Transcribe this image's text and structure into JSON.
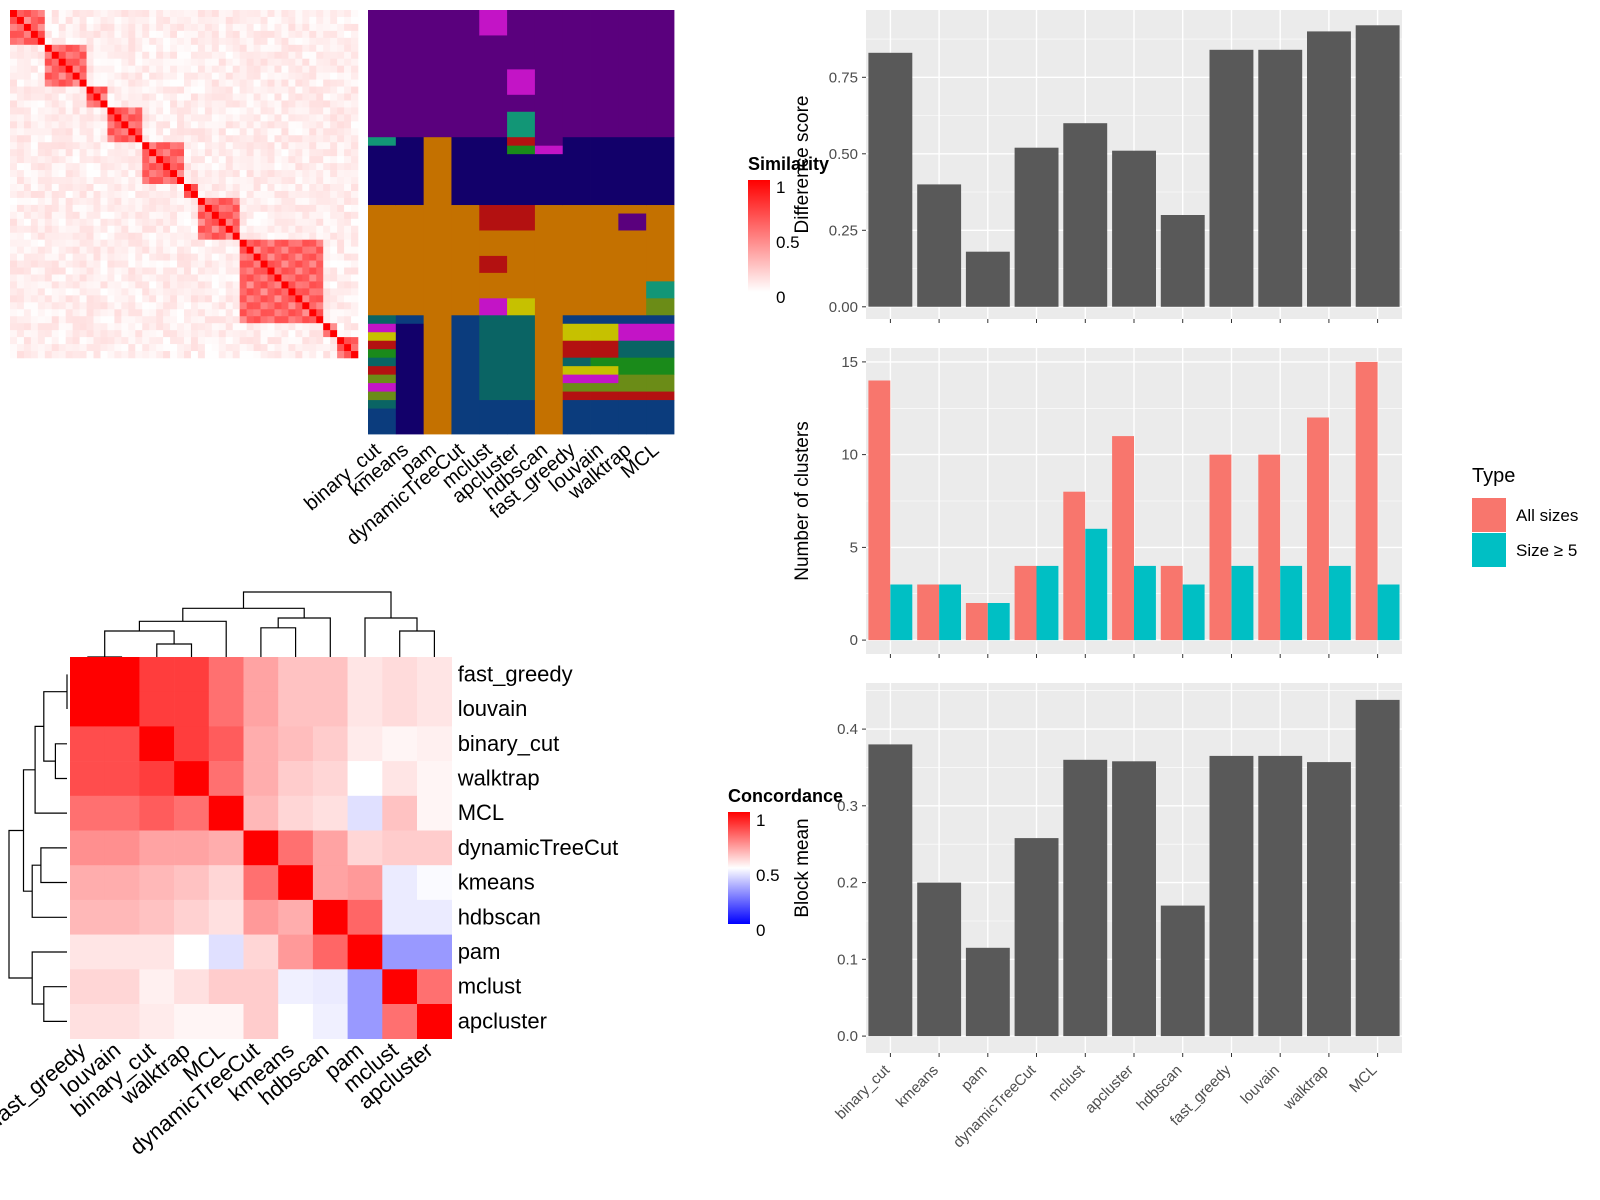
{
  "methods": [
    "binary_cut",
    "kmeans",
    "pam",
    "dynamicTreeCut",
    "mclust",
    "apcluster",
    "hdbscan",
    "fast_greedy",
    "louvain",
    "walktrap",
    "MCL"
  ],
  "similarity_legend": {
    "title": "Similarity",
    "ticks": [
      "1",
      "0.5",
      "0"
    ]
  },
  "concordance_legend": {
    "title": "Concordance",
    "ticks": [
      "1",
      "0.5",
      "0"
    ]
  },
  "bar_legend": {
    "title": "Type",
    "items": [
      "All sizes",
      "Size ≥ 5"
    ]
  },
  "colors": {
    "bar_gray": "#595959",
    "all_sizes": "#F8766D",
    "size5": "#00BFC4",
    "panel_bg": "#EBEBEB",
    "grid": "#FFFFFF",
    "heat_high": "#FF0000",
    "heat_mid": "#FFFFFF",
    "heat_low": "#0000FF"
  },
  "chart_data": [
    {
      "type": "bar",
      "categories": [
        "binary_cut",
        "kmeans",
        "pam",
        "dynamicTreeCut",
        "mclust",
        "apcluster",
        "hdbscan",
        "fast_greedy",
        "louvain",
        "walktrap",
        "MCL"
      ],
      "values": [
        0.83,
        0.4,
        0.18,
        0.52,
        0.6,
        0.51,
        0.3,
        0.84,
        0.84,
        0.9,
        0.92
      ],
      "ylabel": "Difference score",
      "yticks": [
        "0.00",
        "0.25",
        "0.50",
        "0.75"
      ],
      "ylim": [
        -0.04,
        0.97
      ]
    },
    {
      "type": "bar",
      "categories": [
        "binary_cut",
        "kmeans",
        "pam",
        "dynamicTreeCut",
        "mclust",
        "apcluster",
        "hdbscan",
        "fast_greedy",
        "louvain",
        "walktrap",
        "MCL"
      ],
      "series": [
        {
          "name": "All sizes",
          "values": [
            14,
            3,
            2,
            4,
            8,
            11,
            4,
            10,
            10,
            12,
            15
          ]
        },
        {
          "name": "Size ≥ 5",
          "values": [
            3,
            3,
            2,
            4,
            6,
            4,
            3,
            4,
            4,
            4,
            3
          ]
        }
      ],
      "ylabel": "Number of clusters",
      "yticks": [
        "0",
        "5",
        "10",
        "15"
      ],
      "ylim": [
        -0.75,
        15.75
      ]
    },
    {
      "type": "bar",
      "categories": [
        "binary_cut",
        "kmeans",
        "pam",
        "dynamicTreeCut",
        "mclust",
        "apcluster",
        "hdbscan",
        "fast_greedy",
        "louvain",
        "walktrap",
        "MCL"
      ],
      "values": [
        0.38,
        0.2,
        0.115,
        0.258,
        0.36,
        0.358,
        0.17,
        0.365,
        0.365,
        0.357,
        0.438
      ],
      "ylabel": "Block mean",
      "yticks": [
        "0.0",
        "0.1",
        "0.2",
        "0.3",
        "0.4"
      ],
      "ylim": [
        -0.022,
        0.46
      ],
      "xticks": [
        "binary_cut",
        "kmeans",
        "pam",
        "dynamicTreeCut",
        "mclust",
        "apcluster",
        "hdbscan",
        "fast_greedy",
        "louvain",
        "walktrap",
        "MCL"
      ]
    },
    {
      "type": "heatmap",
      "legend_title": "Concordance",
      "rows": [
        "fast_greedy",
        "louvain",
        "binary_cut",
        "walktrap",
        "MCL",
        "dynamicTreeCut",
        "kmeans",
        "hdbscan",
        "pam",
        "mclust",
        "apcluster"
      ],
      "cols": [
        "fast_greedy",
        "louvain",
        "binary_cut",
        "walktrap",
        "MCL",
        "dynamicTreeCut",
        "kmeans",
        "hdbscan",
        "pam",
        "mclust",
        "apcluster"
      ],
      "values": [
        [
          1.0,
          1.0,
          0.88,
          0.88,
          0.78,
          0.68,
          0.62,
          0.62,
          0.55,
          0.57,
          0.55
        ],
        [
          1.0,
          1.0,
          0.88,
          0.88,
          0.78,
          0.68,
          0.62,
          0.62,
          0.55,
          0.57,
          0.55
        ],
        [
          0.85,
          0.85,
          1.0,
          0.88,
          0.82,
          0.66,
          0.63,
          0.6,
          0.54,
          0.52,
          0.53
        ],
        [
          0.85,
          0.85,
          0.88,
          1.0,
          0.78,
          0.66,
          0.6,
          0.58,
          0.5,
          0.55,
          0.52
        ],
        [
          0.78,
          0.78,
          0.82,
          0.78,
          1.0,
          0.64,
          0.58,
          0.56,
          0.44,
          0.62,
          0.52
        ],
        [
          0.72,
          0.72,
          0.68,
          0.68,
          0.66,
          1.0,
          0.78,
          0.68,
          0.58,
          0.6,
          0.6
        ],
        [
          0.66,
          0.66,
          0.64,
          0.62,
          0.58,
          0.78,
          1.0,
          0.68,
          0.7,
          0.46,
          0.49
        ],
        [
          0.64,
          0.64,
          0.62,
          0.59,
          0.56,
          0.7,
          0.66,
          1.0,
          0.8,
          0.46,
          0.46
        ],
        [
          0.55,
          0.55,
          0.55,
          0.5,
          0.44,
          0.58,
          0.7,
          0.8,
          1.0,
          0.3,
          0.3
        ],
        [
          0.58,
          0.58,
          0.53,
          0.56,
          0.6,
          0.6,
          0.47,
          0.46,
          0.3,
          1.0,
          0.78
        ],
        [
          0.56,
          0.56,
          0.54,
          0.52,
          0.52,
          0.6,
          0.5,
          0.47,
          0.3,
          0.78,
          1.0
        ]
      ]
    },
    {
      "type": "heatmap",
      "legend_title": "Similarity",
      "size": 50,
      "blocks": [
        [
          0,
          4
        ],
        [
          5,
          10
        ],
        [
          11,
          13
        ],
        [
          14,
          18
        ],
        [
          19,
          24
        ],
        [
          25,
          26
        ],
        [
          27,
          32
        ],
        [
          33,
          44
        ],
        [
          45,
          46
        ],
        [
          47,
          49
        ]
      ],
      "cols": [
        "binary_cut",
        "kmeans",
        "pam",
        "dynamicTreeCut",
        "mclust",
        "apcluster",
        "hdbscan",
        "fast_greedy",
        "louvain",
        "walktrap",
        "MCL"
      ]
    },
    {
      "type": "table",
      "name": "cluster label strips",
      "rows": 50,
      "cols": [
        "binary_cut",
        "kmeans",
        "pam",
        "dynamicTreeCut",
        "mclust",
        "apcluster",
        "hdbscan",
        "fast_greedy",
        "louvain",
        "walktrap",
        "MCL"
      ],
      "palette": [
        "#5A007D",
        "#12006A",
        "#C47100",
        "#0B3C7D",
        "#C314C6",
        "#129676",
        "#B31111",
        "#0A6464",
        "#C6C100",
        "#6B8C17",
        "#1A8A1A"
      ],
      "segments": {
        "default": [
          [
            0,
            15,
            0
          ],
          [
            15,
            23,
            1
          ],
          [
            23,
            36,
            2
          ],
          [
            36,
            50,
            3
          ]
        ],
        "binary_cut": [
          [
            0,
            15,
            0
          ],
          [
            15,
            16,
            5
          ],
          [
            16,
            23,
            1
          ],
          [
            23,
            36,
            2
          ],
          [
            36,
            37,
            7
          ],
          [
            37,
            38,
            4
          ],
          [
            38,
            39,
            8
          ],
          [
            39,
            40,
            6
          ],
          [
            40,
            41,
            10
          ],
          [
            41,
            42,
            7
          ],
          [
            42,
            43,
            6
          ],
          [
            43,
            44,
            9
          ],
          [
            44,
            45,
            4
          ],
          [
            45,
            46,
            9
          ],
          [
            46,
            47,
            7
          ],
          [
            47,
            50,
            3
          ]
        ],
        "kmeans": [
          [
            0,
            15,
            0
          ],
          [
            15,
            23,
            1
          ],
          [
            23,
            36,
            2
          ],
          [
            36,
            37,
            3
          ],
          [
            37,
            50,
            1
          ]
        ],
        "pam": [
          [
            0,
            15,
            0
          ],
          [
            15,
            50,
            2
          ]
        ],
        "dynamicTreeCut": [
          [
            0,
            15,
            0
          ],
          [
            15,
            23,
            1
          ],
          [
            23,
            36,
            2
          ],
          [
            36,
            50,
            3
          ]
        ],
        "mclust": [
          [
            0,
            3,
            4
          ],
          [
            3,
            15,
            0
          ],
          [
            15,
            23,
            1
          ],
          [
            23,
            26,
            6
          ],
          [
            26,
            29,
            2
          ],
          [
            29,
            31,
            6
          ],
          [
            31,
            34,
            2
          ],
          [
            34,
            36,
            4
          ],
          [
            36,
            46,
            7
          ],
          [
            46,
            50,
            3
          ]
        ],
        "apcluster": [
          [
            0,
            7,
            0
          ],
          [
            7,
            10,
            4
          ],
          [
            10,
            12,
            0
          ],
          [
            12,
            15,
            5
          ],
          [
            15,
            16,
            6
          ],
          [
            16,
            17,
            10
          ],
          [
            17,
            23,
            1
          ],
          [
            23,
            26,
            6
          ],
          [
            26,
            34,
            2
          ],
          [
            34,
            36,
            8
          ],
          [
            36,
            46,
            7
          ],
          [
            46,
            50,
            3
          ]
        ],
        "hdbscan": [
          [
            0,
            16,
            0
          ],
          [
            16,
            17,
            4
          ],
          [
            17,
            23,
            1
          ],
          [
            23,
            50,
            2
          ]
        ],
        "fast_greedy": [
          [
            0,
            15,
            0
          ],
          [
            15,
            23,
            1
          ],
          [
            23,
            36,
            2
          ],
          [
            36,
            37,
            3
          ],
          [
            37,
            39,
            8
          ],
          [
            39,
            41,
            6
          ],
          [
            41,
            42,
            7
          ],
          [
            42,
            43,
            8
          ],
          [
            43,
            44,
            4
          ],
          [
            44,
            45,
            9
          ],
          [
            45,
            46,
            6
          ],
          [
            46,
            50,
            3
          ]
        ],
        "louvain": [
          [
            0,
            15,
            0
          ],
          [
            15,
            23,
            1
          ],
          [
            23,
            36,
            2
          ],
          [
            36,
            37,
            3
          ],
          [
            37,
            39,
            8
          ],
          [
            39,
            41,
            6
          ],
          [
            41,
            42,
            10
          ],
          [
            42,
            43,
            8
          ],
          [
            43,
            44,
            4
          ],
          [
            44,
            45,
            9
          ],
          [
            45,
            46,
            6
          ],
          [
            46,
            50,
            3
          ]
        ],
        "walktrap": [
          [
            0,
            15,
            0
          ],
          [
            15,
            23,
            1
          ],
          [
            23,
            24,
            2
          ],
          [
            24,
            26,
            0
          ],
          [
            26,
            36,
            2
          ],
          [
            36,
            37,
            3
          ],
          [
            37,
            39,
            4
          ],
          [
            39,
            40,
            7
          ],
          [
            40,
            41,
            7
          ],
          [
            41,
            43,
            10
          ],
          [
            43,
            45,
            9
          ],
          [
            45,
            46,
            6
          ],
          [
            46,
            50,
            3
          ]
        ],
        "MCL": [
          [
            0,
            15,
            0
          ],
          [
            15,
            23,
            1
          ],
          [
            23,
            32,
            2
          ],
          [
            32,
            34,
            5
          ],
          [
            34,
            36,
            9
          ],
          [
            36,
            37,
            3
          ],
          [
            37,
            39,
            4
          ],
          [
            39,
            41,
            7
          ],
          [
            41,
            43,
            10
          ],
          [
            43,
            45,
            9
          ],
          [
            45,
            46,
            6
          ],
          [
            46,
            50,
            3
          ]
        ]
      }
    }
  ]
}
